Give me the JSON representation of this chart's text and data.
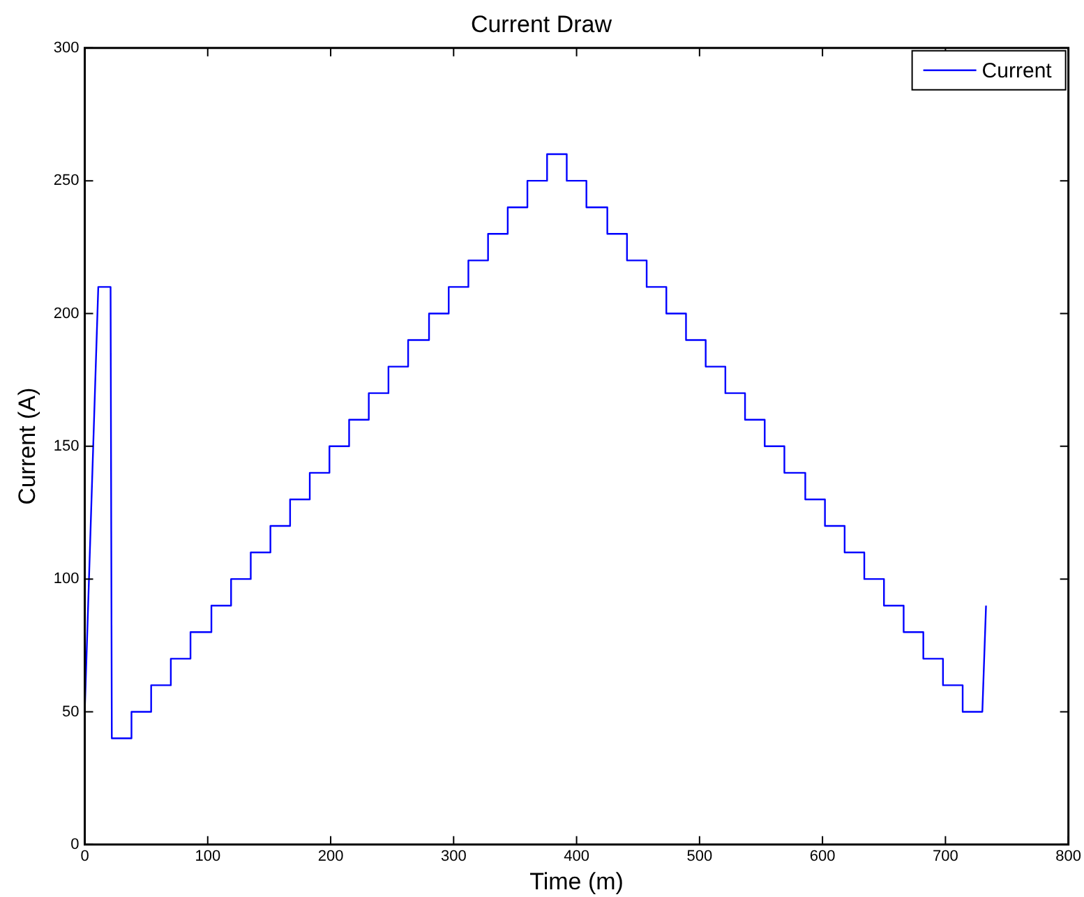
{
  "chart_data": {
    "type": "line",
    "title": "Current Draw",
    "xlabel": "Time (m)",
    "ylabel": "Current (A)",
    "x": [
      0,
      11,
      21,
      22,
      38,
      38,
      54,
      54,
      70,
      70,
      86,
      86,
      103,
      103,
      119,
      119,
      135,
      135,
      151,
      151,
      167,
      167,
      183,
      183,
      199,
      199,
      215,
      215,
      231,
      231,
      247,
      247,
      263,
      263,
      280,
      280,
      296,
      296,
      312,
      312,
      328,
      328,
      344,
      344,
      360,
      360,
      376,
      376,
      392,
      392,
      408,
      408,
      425,
      425,
      441,
      441,
      457,
      457,
      473,
      473,
      489,
      489,
      505,
      505,
      521,
      521,
      537,
      537,
      553,
      553,
      569,
      569,
      586,
      586,
      602,
      602,
      618,
      618,
      634,
      634,
      650,
      650,
      666,
      666,
      682,
      682,
      698,
      698,
      714,
      714,
      730,
      733
    ],
    "series": [
      {
        "name": "Current",
        "color": "#0000ff",
        "values": [
          50,
          210,
          210,
          40,
          40,
          50,
          50,
          60,
          60,
          70,
          70,
          80,
          80,
          90,
          90,
          100,
          100,
          110,
          110,
          120,
          120,
          130,
          130,
          140,
          140,
          150,
          150,
          160,
          160,
          170,
          170,
          180,
          180,
          190,
          190,
          200,
          200,
          210,
          210,
          220,
          220,
          230,
          230,
          240,
          240,
          250,
          250,
          260,
          260,
          250,
          250,
          240,
          240,
          230,
          230,
          220,
          220,
          210,
          210,
          200,
          200,
          190,
          190,
          180,
          180,
          170,
          170,
          160,
          160,
          150,
          150,
          140,
          140,
          130,
          130,
          120,
          120,
          110,
          110,
          100,
          100,
          90,
          90,
          80,
          80,
          70,
          70,
          60,
          60,
          50,
          50,
          90
        ]
      }
    ],
    "xlim": [
      0,
      800
    ],
    "xticks": [
      0,
      100,
      200,
      300,
      400,
      500,
      600,
      700,
      800
    ],
    "ylim": [
      0,
      300
    ],
    "yticks": [
      0,
      50,
      100,
      150,
      200,
      250,
      300
    ],
    "grid": false,
    "legend": "top right",
    "marker": "none",
    "line_style": "solid"
  }
}
